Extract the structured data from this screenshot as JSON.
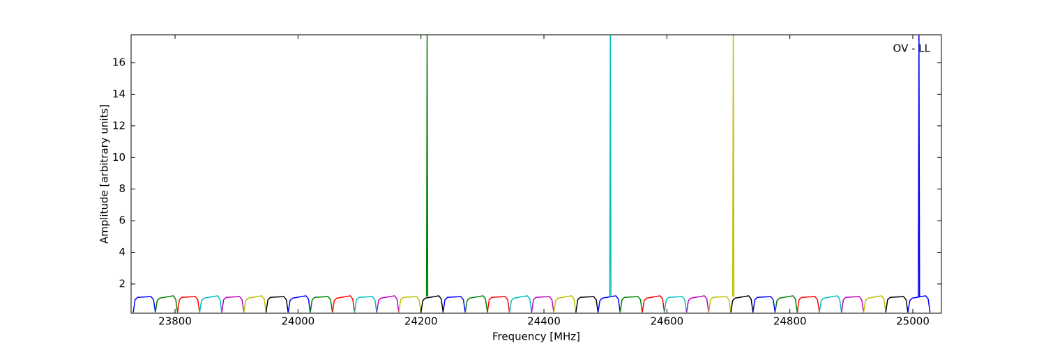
{
  "chart_data": {
    "type": "line",
    "xlabel": "Frequency [MHz]",
    "ylabel": "Amplitude [arbitrary units]",
    "annotation": "OV - LL",
    "xlim": [
      23728.5,
      25046.5
    ],
    "ylim": [
      0.15,
      17.76
    ],
    "xticks": [
      23800,
      24000,
      24200,
      24400,
      24600,
      24800,
      25000
    ],
    "yticks": [
      2,
      4,
      6,
      8,
      10,
      12,
      14,
      16
    ],
    "series": [
      {
        "color": "#0000ff",
        "x": [
          23732,
          23735,
          23739,
          23761,
          23765,
          23768
        ],
        "values": [
          0.2,
          1.0,
          1.15,
          1.2,
          1.0,
          0.2
        ]
      },
      {
        "color": "#008000",
        "x": [
          23768,
          23771,
          23775,
          23797,
          23801,
          23804
        ],
        "values": [
          0.2,
          0.95,
          1.1,
          1.25,
          1.05,
          0.2
        ]
      },
      {
        "color": "#ff0000",
        "x": [
          23804,
          23807,
          23811,
          23833,
          23837,
          23840
        ],
        "values": [
          0.2,
          1.0,
          1.15,
          1.2,
          1.0,
          0.2
        ]
      },
      {
        "color": "#00bfbf",
        "x": [
          23840,
          23843,
          23847,
          23869,
          23873,
          23876
        ],
        "values": [
          0.2,
          0.95,
          1.1,
          1.25,
          1.05,
          0.2
        ]
      },
      {
        "color": "#bf00bf",
        "x": [
          23876,
          23879,
          23883,
          23905,
          23909,
          23912
        ],
        "values": [
          0.2,
          1.0,
          1.15,
          1.2,
          1.0,
          0.2
        ]
      },
      {
        "color": "#bfbf00",
        "x": [
          23912,
          23915,
          23919,
          23941,
          23945,
          23948
        ],
        "values": [
          0.2,
          0.95,
          1.1,
          1.25,
          1.05,
          0.2
        ]
      },
      {
        "color": "#000000",
        "x": [
          23948,
          23951,
          23955,
          23977,
          23981,
          23984
        ],
        "values": [
          0.2,
          1.0,
          1.15,
          1.2,
          1.0,
          0.2
        ]
      },
      {
        "color": "#0000ff",
        "x": [
          23984,
          23987,
          23991,
          24013,
          24017,
          24020
        ],
        "values": [
          0.2,
          0.95,
          1.1,
          1.25,
          1.05,
          0.2
        ]
      },
      {
        "color": "#008000",
        "x": [
          24020,
          24023,
          24027,
          24049,
          24053,
          24056
        ],
        "values": [
          0.2,
          1.0,
          1.15,
          1.2,
          1.0,
          0.2
        ]
      },
      {
        "color": "#ff0000",
        "x": [
          24056,
          24059,
          24063,
          24085,
          24089,
          24092
        ],
        "values": [
          0.2,
          0.95,
          1.1,
          1.25,
          1.05,
          0.2
        ]
      },
      {
        "color": "#00bfbf",
        "x": [
          24092,
          24095,
          24099,
          24121,
          24125,
          24128
        ],
        "values": [
          0.2,
          1.0,
          1.15,
          1.2,
          1.0,
          0.2
        ]
      },
      {
        "color": "#bf00bf",
        "x": [
          24128,
          24131,
          24135,
          24157,
          24161,
          24164
        ],
        "values": [
          0.2,
          0.95,
          1.1,
          1.25,
          1.05,
          0.2
        ]
      },
      {
        "color": "#bfbf00",
        "x": [
          24164,
          24167,
          24171,
          24193,
          24197,
          24200
        ],
        "values": [
          0.2,
          1.0,
          1.15,
          1.2,
          1.0,
          0.2
        ]
      },
      {
        "color": "#000000",
        "x": [
          24200,
          24203,
          24207,
          24229,
          24233,
          24236
        ],
        "values": [
          0.2,
          0.95,
          1.1,
          1.25,
          1.05,
          0.2
        ]
      },
      {
        "color": "#0000ff",
        "x": [
          24236,
          24239,
          24243,
          24265,
          24269,
          24272
        ],
        "values": [
          0.2,
          1.0,
          1.15,
          1.2,
          1.0,
          0.2
        ]
      },
      {
        "color": "#008000",
        "x": [
          24272,
          24275,
          24279,
          24301,
          24305,
          24308
        ],
        "values": [
          0.2,
          0.95,
          1.1,
          1.25,
          1.05,
          0.2
        ]
      },
      {
        "color": "#ff0000",
        "x": [
          24308,
          24311,
          24315,
          24337,
          24341,
          24344
        ],
        "values": [
          0.2,
          1.0,
          1.15,
          1.2,
          1.0,
          0.2
        ]
      },
      {
        "color": "#00bfbf",
        "x": [
          24344,
          24347,
          24351,
          24373,
          24377,
          24380
        ],
        "values": [
          0.2,
          0.95,
          1.1,
          1.25,
          1.05,
          0.2
        ]
      },
      {
        "color": "#bf00bf",
        "x": [
          24380,
          24383,
          24387,
          24409,
          24413,
          24416
        ],
        "values": [
          0.2,
          1.0,
          1.15,
          1.2,
          1.0,
          0.2
        ]
      },
      {
        "color": "#bfbf00",
        "x": [
          24416,
          24419,
          24423,
          24445,
          24449,
          24452
        ],
        "values": [
          0.2,
          0.95,
          1.1,
          1.25,
          1.05,
          0.2
        ]
      },
      {
        "color": "#000000",
        "x": [
          24452,
          24455,
          24459,
          24481,
          24485,
          24488
        ],
        "values": [
          0.2,
          1.0,
          1.15,
          1.2,
          1.0,
          0.2
        ]
      },
      {
        "color": "#0000ff",
        "x": [
          24488,
          24491,
          24495,
          24517,
          24521,
          24524
        ],
        "values": [
          0.2,
          0.95,
          1.1,
          1.25,
          1.05,
          0.2
        ]
      },
      {
        "color": "#008000",
        "x": [
          24524,
          24527,
          24531,
          24553,
          24557,
          24560
        ],
        "values": [
          0.2,
          1.0,
          1.15,
          1.2,
          1.0,
          0.2
        ]
      },
      {
        "color": "#ff0000",
        "x": [
          24560,
          24563,
          24567,
          24589,
          24593,
          24596
        ],
        "values": [
          0.2,
          0.95,
          1.1,
          1.25,
          1.05,
          0.2
        ]
      },
      {
        "color": "#00bfbf",
        "x": [
          24596,
          24599,
          24603,
          24625,
          24629,
          24632
        ],
        "values": [
          0.2,
          1.0,
          1.15,
          1.2,
          1.0,
          0.2
        ]
      },
      {
        "color": "#bf00bf",
        "x": [
          24632,
          24635,
          24639,
          24661,
          24665,
          24668
        ],
        "values": [
          0.2,
          0.95,
          1.1,
          1.25,
          1.05,
          0.2
        ]
      },
      {
        "color": "#bfbf00",
        "x": [
          24668,
          24671,
          24675,
          24697,
          24701,
          24704
        ],
        "values": [
          0.2,
          1.0,
          1.15,
          1.2,
          1.0,
          0.2
        ]
      },
      {
        "color": "#000000",
        "x": [
          24704,
          24707,
          24711,
          24733,
          24737,
          24740
        ],
        "values": [
          0.2,
          0.95,
          1.1,
          1.25,
          1.05,
          0.2
        ]
      },
      {
        "color": "#0000ff",
        "x": [
          24740,
          24743,
          24747,
          24769,
          24773,
          24776
        ],
        "values": [
          0.2,
          1.0,
          1.15,
          1.2,
          1.0,
          0.2
        ]
      },
      {
        "color": "#008000",
        "x": [
          24776,
          24779,
          24783,
          24805,
          24809,
          24812
        ],
        "values": [
          0.2,
          0.95,
          1.1,
          1.25,
          1.05,
          0.2
        ]
      },
      {
        "color": "#ff0000",
        "x": [
          24812,
          24815,
          24819,
          24841,
          24845,
          24848
        ],
        "values": [
          0.2,
          1.0,
          1.15,
          1.2,
          1.0,
          0.2
        ]
      },
      {
        "color": "#00bfbf",
        "x": [
          24848,
          24851,
          24855,
          24877,
          24881,
          24884
        ],
        "values": [
          0.2,
          0.95,
          1.1,
          1.25,
          1.05,
          0.2
        ]
      },
      {
        "color": "#bf00bf",
        "x": [
          24884,
          24887,
          24891,
          24913,
          24917,
          24920
        ],
        "values": [
          0.2,
          1.0,
          1.15,
          1.2,
          1.0,
          0.2
        ]
      },
      {
        "color": "#bfbf00",
        "x": [
          24920,
          24923,
          24927,
          24949,
          24953,
          24956
        ],
        "values": [
          0.2,
          0.95,
          1.1,
          1.25,
          1.05,
          0.2
        ]
      },
      {
        "color": "#000000",
        "x": [
          24956,
          24959,
          24963,
          24985,
          24989,
          24992
        ],
        "values": [
          0.2,
          1.0,
          1.15,
          1.2,
          1.0,
          0.2
        ]
      },
      {
        "color": "#0000ff",
        "x": [
          24992,
          24995,
          24999,
          25021,
          25025,
          25028
        ],
        "values": [
          0.2,
          0.95,
          1.1,
          1.25,
          1.05,
          0.2
        ]
      },
      {
        "color": "#008000",
        "x": [
          24209,
          24210,
          24211
        ],
        "values": [
          1.2,
          18,
          1.2
        ]
      },
      {
        "color": "#00bfbf",
        "x": [
          24507,
          24508,
          24509
        ],
        "values": [
          1.2,
          18,
          1.2
        ]
      },
      {
        "color": "#bfbf00",
        "x": [
          24707,
          24708,
          24709
        ],
        "values": [
          1.2,
          18,
          1.2
        ]
      },
      {
        "color": "#0000ff",
        "x": [
          25009,
          25010,
          25011
        ],
        "values": [
          1.2,
          18,
          1.2
        ]
      }
    ]
  }
}
